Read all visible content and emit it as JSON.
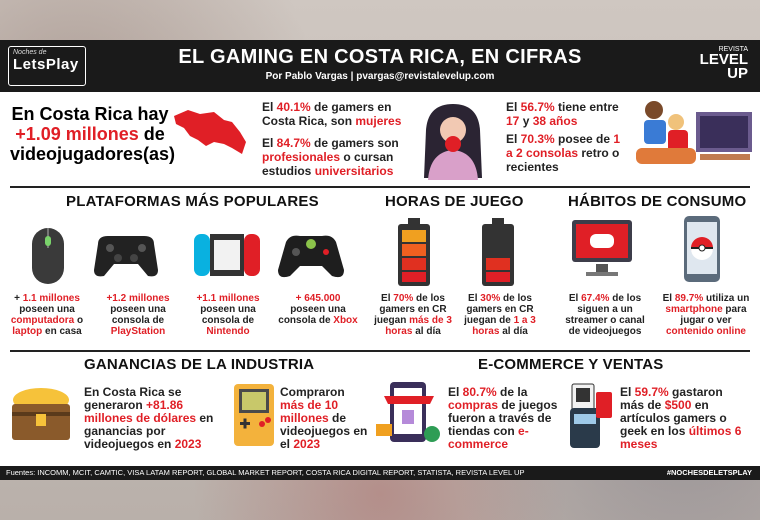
{
  "header": {
    "logo_small": "Noches de",
    "logo_big": "LetsPlay",
    "title": "EL GAMING EN COSTA RICA, EN CIFRAS",
    "byline": "Por Pablo Vargas | pvargas@revistalevelup.com",
    "brand_small": "REVISTA",
    "brand_big1": "LEVEL",
    "brand_big2": "UP"
  },
  "hero": {
    "l1": "En Costa Rica hay",
    "l2": "+1.09 millones",
    "l3": " de",
    "l4": "videojugadores(as)"
  },
  "stats_a": {
    "p1a": "El ",
    "p1b": "40.1%",
    "p1c": " de gamers en Costa Rica, son ",
    "p1d": "mujeres",
    "p2a": "El ",
    "p2b": "84.7%",
    "p2c": " de gamers son ",
    "p2d": "profesionales",
    "p2e": " o cursan estudios ",
    "p2f": "universitarios"
  },
  "stats_b": {
    "p1a": "El ",
    "p1b": "56.7%",
    "p1c": " tiene entre ",
    "p1d": "17",
    "p1e": " y ",
    "p1f": "38 años",
    "p2a": "El ",
    "p2b": "70.3%",
    "p2c": " posee de ",
    "p2d": "1 a 2 consolas",
    "p2e": " retro o recientes"
  },
  "sections": {
    "plataformas": "PLATAFORMAS MÁS POPULARES",
    "horas": "HORAS DE JUEGO",
    "habitos": "HÁBITOS DE CONSUMO",
    "ganancias": "GANANCIAS DE LA INDUSTRIA",
    "ecommerce": "E-COMMERCE Y VENTAS"
  },
  "plataformas": [
    {
      "a": "+ ",
      "b": "1.1 millones",
      "c": " poseen una ",
      "d": "computadora",
      "e": " o ",
      "f": "laptop",
      "g": " en casa"
    },
    {
      "a": "",
      "b": "+1.2 millones",
      "c": " poseen una consola de ",
      "d": "PlayStation",
      "e": "",
      "f": "",
      "g": ""
    },
    {
      "a": "",
      "b": "+1.1 millones",
      "c": " poseen una consola de ",
      "d": "Nintendo",
      "e": "",
      "f": "",
      "g": ""
    },
    {
      "a": "",
      "b": "+ 645.000",
      "c": " poseen una consola de ",
      "d": "Xbox",
      "e": "",
      "f": "",
      "g": ""
    }
  ],
  "horas": [
    {
      "a": "El ",
      "b": "70%",
      "c": " de los gamers en CR juegan ",
      "d": "más de 3 horas",
      "e": " al día"
    },
    {
      "a": "El ",
      "b": "30%",
      "c": " de los gamers en CR juegan de ",
      "d": "1 a 3 horas",
      "e": " al día"
    }
  ],
  "habitos": [
    {
      "a": "El ",
      "b": "67.4%",
      "c": " de los siguen a un streamer o canal de videojuegos",
      "d": "",
      "e": ""
    },
    {
      "a": "El ",
      "b": "89.7%",
      "c": " utiliza un ",
      "d": "smartphone",
      "e": " para jugar o ver ",
      "f": "contenido online"
    }
  ],
  "ganancias": [
    {
      "a": "En Costa Rica se generaron ",
      "b": "+81.86 millones de dólares",
      "c": " en ganancias por videojuegos en ",
      "d": "2023"
    },
    {
      "a": "Compraron ",
      "b": "más de 10 millones",
      "c": " de videojuegos en el ",
      "d": "2023"
    }
  ],
  "ecommerce": [
    {
      "a": "El ",
      "b": "80.7%",
      "c": " de la ",
      "d": "compras",
      "e": " de juegos fueron a través de tiendas con ",
      "f": "e-commerce"
    },
    {
      "a": "El ",
      "b": "59.7%",
      "c": " gastaron más de ",
      "d": "$500",
      "e": " en artículos gamers o geek en los ",
      "f": "últimos 6 meses"
    }
  ],
  "footer": {
    "sources": "Fuentes: INCOMM, MCIT, CAMTIC, VISA LATAM REPORT, GLOBAL MARKET REPORT, COSTA RICA DIGITAL REPORT, STATISTA, REVISTA LEVEL UP",
    "hashtag": "#NOCHESDELETSPLAY"
  }
}
